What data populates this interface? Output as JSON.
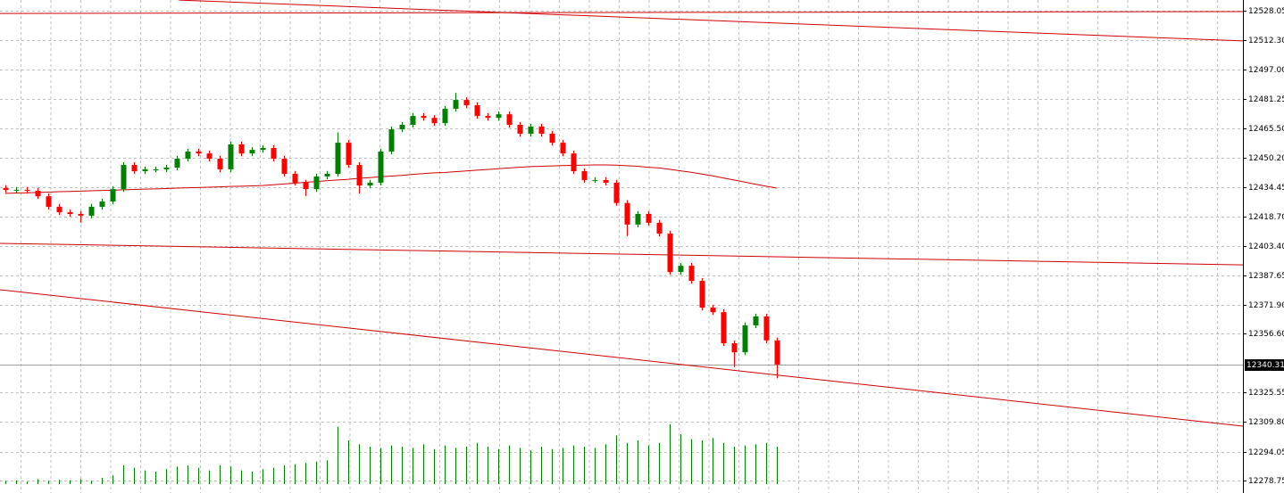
{
  "chart_data": {
    "type": "candlestick",
    "ylim": [
      12272.13,
      12533.73
    ],
    "yticks": [
      12528.05,
      {
        "value": 12512.3,
        "label": "12512.30"
      },
      {
        "value": 12497,
        "label": "12497.00"
      },
      12481.25,
      {
        "value": 12465.5,
        "label": "12465.50"
      },
      {
        "value": 12450.2,
        "label": "12450.20"
      },
      12434.45,
      {
        "value": 12418.7,
        "label": "12418.70"
      },
      {
        "value": 12403.4,
        "label": "12403.40"
      },
      12387.65,
      {
        "value": 12371.9,
        "label": "12371.90"
      },
      {
        "value": 12356.6,
        "label": "12356.60"
      },
      12325.55,
      {
        "value": 12309.8,
        "label": "12309.80"
      },
      12294.05,
      12278.75
    ],
    "grid": true,
    "last_price": 12340.31,
    "up_color": "#008000",
    "down_color": "#ff0000",
    "line_color": "#d00000",
    "volume_color": "#008000",
    "open": [
      12434.0,
      12433.0,
      12433.0,
      12432.5,
      12429.6,
      12424.0,
      12421.1,
      12420.2,
      12419.3,
      12424.0,
      12426.8,
      12433.4,
      12446.2,
      12442.9,
      12443.9,
      12443.9,
      12444.8,
      12449.5,
      12453.3,
      12452.3,
      12449.5,
      12443.9,
      12457.1,
      12452.3,
      12454.2,
      12455.2,
      12449.5,
      12441.5,
      12436.8,
      12433.4,
      12440.1,
      12441.5,
      12458.0,
      12446.2,
      12435.3,
      12436.8,
      12453.3,
      12465.1,
      12467.5,
      12472.2,
      12471.2,
      12468.4,
      12476.0,
      12480.7,
      12477.9,
      12472.2,
      12471.2,
      12473.1,
      12467.5,
      12462.8,
      12466.6,
      12462.8,
      12458.0,
      12452.3,
      12442.9,
      12438.2,
      12438.2,
      12436.8,
      12426.0,
      12414.6,
      12420.2,
      12415.5,
      12409.8,
      12389.4,
      12392.7,
      12384.7,
      12370.5,
      12368.1,
      12351.6,
      12346.8,
      12361.1,
      12365.8,
      12353.1
    ],
    "high": [
      12435.5,
      12434.5,
      12434.5,
      12434.0,
      12431.1,
      12425.5,
      12422.6,
      12421.7,
      12425.5,
      12428.3,
      12434.9,
      12447.7,
      12447.7,
      12445.4,
      12445.4,
      12446.3,
      12451.0,
      12454.8,
      12454.8,
      12453.8,
      12451.0,
      12458.6,
      12458.6,
      12455.7,
      12456.7,
      12456.7,
      12451.0,
      12443.0,
      12438.3,
      12441.6,
      12443.0,
      12463.5,
      12459.5,
      12447.7,
      12438.3,
      12454.8,
      12466.6,
      12469.0,
      12473.7,
      12473.7,
      12472.7,
      12477.5,
      12484.5,
      12482.2,
      12479.4,
      12473.7,
      12474.6,
      12474.6,
      12469.0,
      12468.1,
      12468.1,
      12464.3,
      12459.5,
      12453.8,
      12444.4,
      12439.7,
      12439.7,
      12438.3,
      12427.5,
      12421.7,
      12421.7,
      12417.0,
      12411.3,
      12394.2,
      12394.2,
      12386.2,
      12372.0,
      12369.6,
      12353.1,
      12362.6,
      12367.3,
      12367.3,
      12354.6
    ],
    "low": [
      12431.5,
      12431.5,
      12431.0,
      12428.1,
      12422.5,
      12419.6,
      12418.7,
      12415.6,
      12417.8,
      12422.5,
      12425.3,
      12431.9,
      12441.4,
      12441.4,
      12442.4,
      12442.4,
      12443.3,
      12448.0,
      12450.8,
      12448.0,
      12442.4,
      12442.4,
      12450.8,
      12450.8,
      12452.7,
      12448.0,
      12440.0,
      12435.3,
      12429.7,
      12431.9,
      12438.6,
      12440.0,
      12444.7,
      12431.0,
      12433.8,
      12435.3,
      12451.8,
      12463.6,
      12466.0,
      12469.7,
      12466.9,
      12466.9,
      12474.5,
      12476.4,
      12470.7,
      12469.7,
      12469.7,
      12466.0,
      12461.3,
      12461.3,
      12461.3,
      12456.5,
      12450.8,
      12441.4,
      12436.7,
      12436.7,
      12435.3,
      12424.5,
      12408.5,
      12413.1,
      12414.0,
      12408.3,
      12387.9,
      12387.9,
      12383.2,
      12369.0,
      12366.6,
      12350.1,
      12339.0,
      12345.3,
      12359.6,
      12351.6,
      12333.0
    ],
    "close": [
      12433.0,
      12433.0,
      12432.5,
      12429.6,
      12424.0,
      12421.1,
      12420.2,
      12419.3,
      12424.0,
      12426.8,
      12433.4,
      12446.2,
      12442.9,
      12443.9,
      12443.9,
      12444.8,
      12449.5,
      12453.3,
      12452.3,
      12449.5,
      12443.9,
      12457.1,
      12452.3,
      12454.2,
      12455.2,
      12449.5,
      12441.5,
      12436.8,
      12433.4,
      12440.1,
      12441.5,
      12458.0,
      12446.2,
      12435.3,
      12436.8,
      12453.3,
      12465.1,
      12467.5,
      12472.2,
      12471.2,
      12468.4,
      12476.0,
      12480.7,
      12477.9,
      12472.2,
      12471.2,
      12473.1,
      12467.5,
      12462.8,
      12466.6,
      12462.8,
      12458.0,
      12452.3,
      12442.9,
      12438.2,
      12438.2,
      12436.8,
      12426.0,
      12414.6,
      12420.2,
      12415.5,
      12409.8,
      12389.4,
      12392.7,
      12384.7,
      12370.5,
      12368.1,
      12351.6,
      12346.8,
      12361.1,
      12365.8,
      12353.1,
      12340.31
    ],
    "ma": [
      12431.1,
      12431.3,
      12431.4,
      12431.6,
      12431.8,
      12432.0,
      12432.1,
      12432.3,
      12432.5,
      12432.7,
      12432.8,
      12433.0,
      12433.2,
      12433.4,
      12433.5,
      12433.7,
      12433.9,
      12434.1,
      12434.2,
      12434.4,
      12434.6,
      12434.8,
      12434.9,
      12435.1,
      12435.3,
      12435.7,
      12436.1,
      12436.5,
      12437.0,
      12437.4,
      12437.8,
      12438.2,
      12438.6,
      12439.1,
      12439.5,
      12439.9,
      12440.3,
      12440.7,
      12441.2,
      12441.6,
      12442.0,
      12442.2,
      12442.6,
      12443.0,
      12443.4,
      12443.8,
      12444.2,
      12444.6,
      12445.0,
      12445.3,
      12445.5,
      12445.7,
      12445.9,
      12446.0,
      12446.1,
      12446.2,
      12446.2,
      12446.1,
      12445.8,
      12445.5,
      12445.0,
      12444.6,
      12443.9,
      12443.1,
      12442.3,
      12441.4,
      12440.4,
      12439.3,
      12438.2,
      12437.1,
      12436.0,
      12434.9,
      12433.9
    ],
    "volume": [
      5,
      6,
      4,
      8,
      5,
      7,
      6,
      8,
      5,
      10,
      14,
      30,
      26,
      22,
      20,
      24,
      28,
      30,
      26,
      22,
      30,
      28,
      22,
      20,
      24,
      26,
      30,
      32,
      34,
      36,
      38,
      92,
      70,
      64,
      60,
      58,
      62,
      60,
      58,
      64,
      56,
      62,
      58,
      60,
      66,
      60,
      56,
      62,
      58,
      54,
      60,
      56,
      58,
      62,
      60,
      58,
      64,
      78,
      66,
      70,
      62,
      66,
      96,
      80,
      72,
      70,
      74,
      66,
      60,
      62,
      64,
      66,
      60
    ],
    "trendlines": [
      {
        "x": [
          -0.5,
          115.5
        ],
        "y": [
          12526.6,
          12527.6
        ]
      },
      {
        "x": [
          16.2,
          115.5
        ],
        "y": [
          12533.7,
          12512.0
        ]
      },
      {
        "x": [
          -0.5,
          115.5
        ],
        "y": [
          12404.6,
          12393.2
        ]
      },
      {
        "x": [
          -0.5,
          115.5
        ],
        "y": [
          12380.0,
          12307.6
        ]
      }
    ]
  }
}
